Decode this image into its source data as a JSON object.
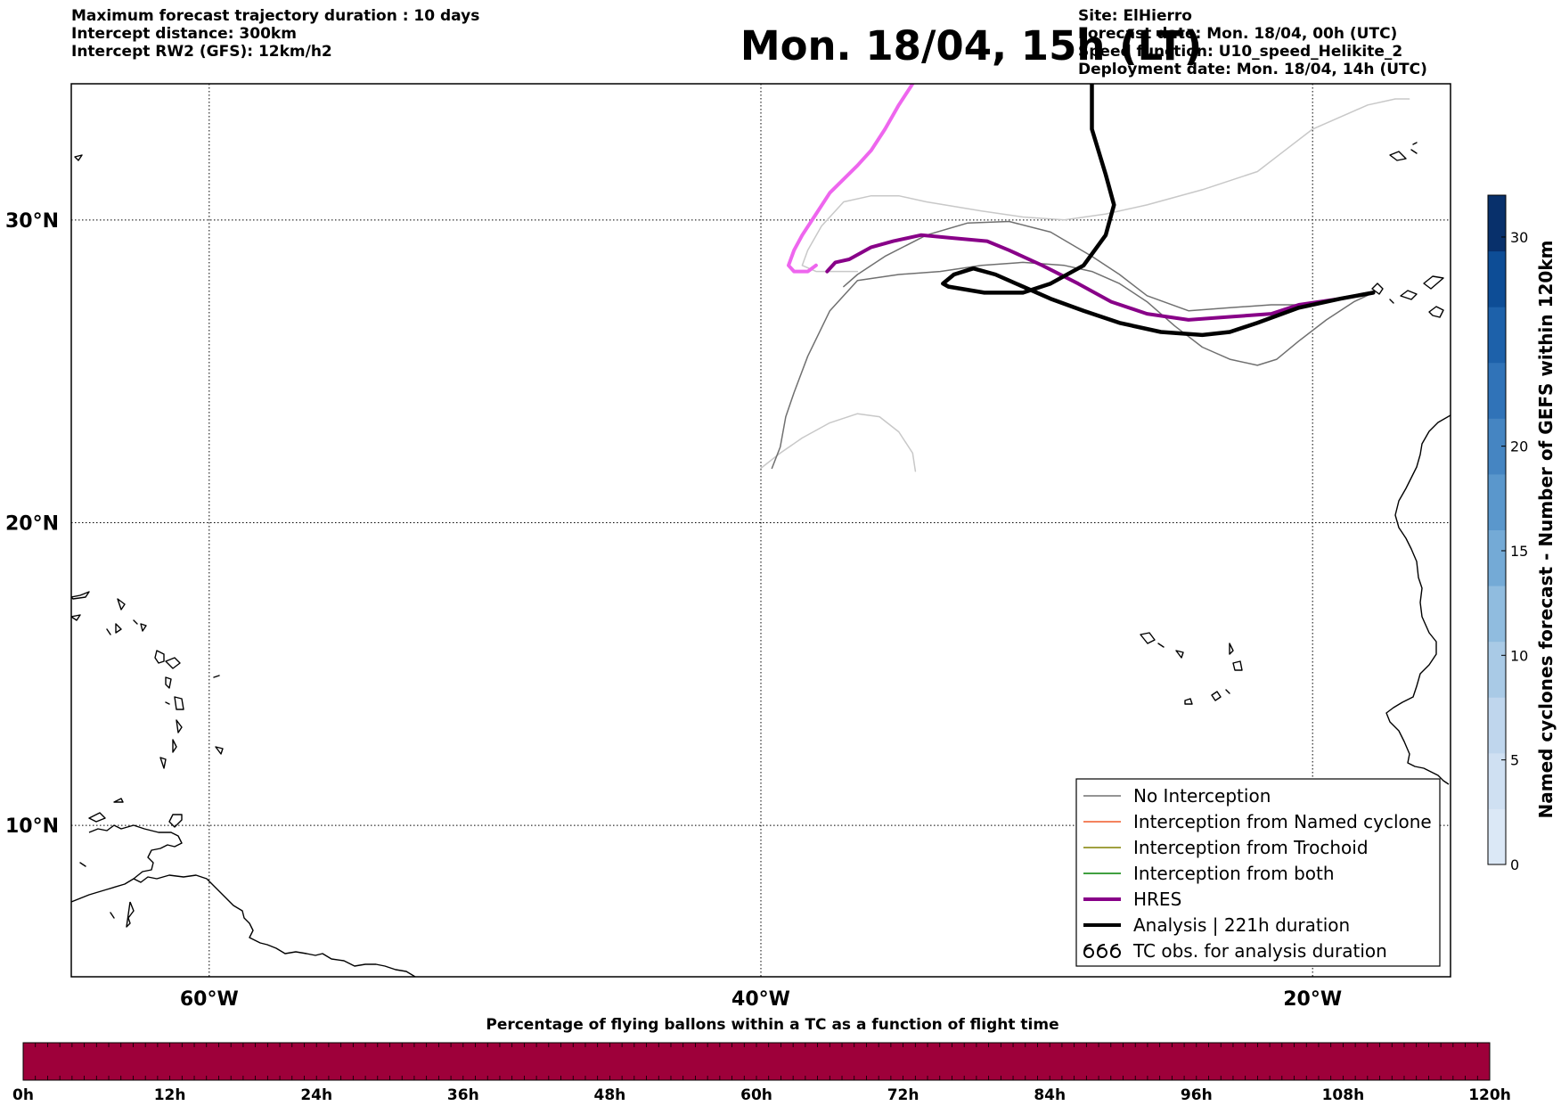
{
  "header_left": [
    "Maximum forecast trajectory duration : 10 days",
    "Intercept distance: 300km",
    "Intercept RW2 (GFS):  12km/h2"
  ],
  "title": "Mon. 18/04, 15h (LT)",
  "header_right": [
    "Site: ElHierro",
    "Forecast date: Mon. 18/04, 00h (UTC)",
    "Speed function: U10_speed_Helikite_2",
    "Deployment date: Mon. 18/04, 14h (UTC)"
  ],
  "map": {
    "extent": {
      "lon": [
        -65,
        -15
      ],
      "lat": [
        5,
        34.5
      ]
    },
    "lat_gridlines": [
      {
        "value": 30,
        "label": "30°N"
      },
      {
        "value": 20,
        "label": "20°N"
      },
      {
        "value": 10,
        "label": "10°N"
      }
    ],
    "lon_gridlines": [
      {
        "value": -60,
        "label": "60°W"
      },
      {
        "value": -40,
        "label": "40°W"
      },
      {
        "value": -20,
        "label": "20°W"
      }
    ],
    "trajectories": [
      {
        "kind": "ensemble",
        "color": "#c8c8c8",
        "width": 1.5,
        "points": [
          [
            -16.5,
            34
          ],
          [
            -17,
            34
          ],
          [
            -18,
            33.8
          ],
          [
            -20,
            33
          ],
          [
            -21,
            32.3
          ],
          [
            -22,
            31.6
          ],
          [
            -24,
            31
          ],
          [
            -26,
            30.5
          ],
          [
            -27.5,
            30.2
          ],
          [
            -29,
            30
          ],
          [
            -30.5,
            30.1
          ],
          [
            -32,
            30.3
          ],
          [
            -34,
            30.6
          ],
          [
            -35,
            30.8
          ],
          [
            -36,
            30.8
          ],
          [
            -37,
            30.6
          ],
          [
            -37.8,
            29.8
          ],
          [
            -38.3,
            29
          ],
          [
            -38.5,
            28.5
          ],
          [
            -38,
            28.3
          ],
          [
            -36.5,
            28.3
          ]
        ]
      },
      {
        "kind": "ensemble",
        "color": "#c8c8c8",
        "width": 1.5,
        "points": [
          [
            -34.4,
            21.7
          ],
          [
            -34.5,
            22.3
          ],
          [
            -35,
            23
          ],
          [
            -35.7,
            23.5
          ],
          [
            -36.5,
            23.6
          ],
          [
            -37.5,
            23.3
          ],
          [
            -38.5,
            22.8
          ],
          [
            -39.3,
            22.3
          ],
          [
            -40,
            21.8
          ]
        ]
      },
      {
        "kind": "no-interception",
        "color": "#707070",
        "width": 1.5,
        "points": [
          [
            -17.8,
            27.6
          ],
          [
            -18.5,
            27.3
          ],
          [
            -19.5,
            26.7
          ],
          [
            -20.5,
            26
          ],
          [
            -21.3,
            25.4
          ],
          [
            -22,
            25.2
          ],
          [
            -23,
            25.4
          ],
          [
            -24,
            25.8
          ],
          [
            -25,
            26.5
          ],
          [
            -26,
            27.3
          ],
          [
            -27,
            27.9
          ],
          [
            -28,
            28.3
          ],
          [
            -29,
            28.5
          ],
          [
            -30.5,
            28.6
          ],
          [
            -32,
            28.5
          ],
          [
            -33.5,
            28.3
          ],
          [
            -35,
            28.2
          ],
          [
            -36.5,
            28.0
          ],
          [
            -37.5,
            27
          ],
          [
            -38.3,
            25.5
          ],
          [
            -38.8,
            24.3
          ],
          [
            -39.1,
            23.5
          ],
          [
            -39.3,
            22.5
          ],
          [
            -39.6,
            21.8
          ]
        ]
      },
      {
        "kind": "no-interception",
        "color": "#707070",
        "width": 1.5,
        "points": [
          [
            -17.8,
            27.6
          ],
          [
            -19,
            27.4
          ],
          [
            -20,
            27.2
          ],
          [
            -21.5,
            27.2
          ],
          [
            -23,
            27.1
          ],
          [
            -24.5,
            27
          ],
          [
            -26,
            27.5
          ],
          [
            -27,
            28.2
          ],
          [
            -28,
            28.8
          ],
          [
            -29.5,
            29.6
          ],
          [
            -31,
            29.95
          ],
          [
            -32.5,
            29.9
          ],
          [
            -34,
            29.5
          ],
          [
            -35.5,
            28.8
          ],
          [
            -36.5,
            28.2
          ],
          [
            -37,
            27.8
          ]
        ]
      },
      {
        "kind": "hres-pink",
        "color": "#ee66ee",
        "width": 4,
        "points": [
          [
            -34.5,
            34.5
          ],
          [
            -35,
            33.8
          ],
          [
            -35.5,
            33
          ],
          [
            -36,
            32.3
          ],
          [
            -36.5,
            31.8
          ],
          [
            -37.5,
            30.9
          ],
          [
            -38,
            30.2
          ],
          [
            -38.5,
            29.5
          ],
          [
            -38.8,
            29
          ],
          [
            -39,
            28.5
          ],
          [
            -38.8,
            28.3
          ],
          [
            -38.3,
            28.3
          ],
          [
            -38,
            28.5
          ]
        ]
      },
      {
        "kind": "hres",
        "color": "#880088",
        "width": 4,
        "points": [
          [
            -17.8,
            27.6
          ],
          [
            -19,
            27.4
          ],
          [
            -20.5,
            27.2
          ],
          [
            -21.5,
            26.9
          ],
          [
            -23,
            26.8
          ],
          [
            -24.5,
            26.7
          ],
          [
            -26,
            26.9
          ],
          [
            -27.3,
            27.3
          ],
          [
            -28.5,
            27.9
          ],
          [
            -29.8,
            28.5
          ],
          [
            -31,
            29.0
          ],
          [
            -31.8,
            29.3
          ],
          [
            -33,
            29.4
          ],
          [
            -34.2,
            29.5
          ],
          [
            -35.2,
            29.3
          ],
          [
            -36,
            29.1
          ],
          [
            -36.8,
            28.7
          ],
          [
            -37.3,
            28.6
          ],
          [
            -37.6,
            28.3
          ]
        ]
      },
      {
        "kind": "analysis",
        "color": "#000000",
        "width": 4.5,
        "points": [
          [
            -17.8,
            27.6
          ],
          [
            -19,
            27.4
          ],
          [
            -20.5,
            27.1
          ],
          [
            -22,
            26.6
          ],
          [
            -23,
            26.3
          ],
          [
            -24,
            26.2
          ],
          [
            -25.5,
            26.3
          ],
          [
            -27,
            26.6
          ],
          [
            -28.3,
            27.0
          ],
          [
            -29.5,
            27.4
          ],
          [
            -30.5,
            27.8
          ],
          [
            -31.5,
            28.2
          ],
          [
            -32.3,
            28.4
          ],
          [
            -33,
            28.2
          ],
          [
            -33.4,
            27.9
          ],
          [
            -33.2,
            27.8
          ],
          [
            -31.9,
            27.6
          ],
          [
            -30.5,
            27.6
          ],
          [
            -29.5,
            27.9
          ],
          [
            -28.3,
            28.5
          ],
          [
            -27.5,
            29.5
          ],
          [
            -27.2,
            30.5
          ],
          [
            -27.5,
            31.5
          ],
          [
            -28.0,
            33
          ],
          [
            -28.0,
            34.5
          ]
        ]
      }
    ]
  },
  "legend": {
    "items": [
      {
        "label": "No Interception",
        "color": "#707070",
        "width": 1.5,
        "glyph": "line"
      },
      {
        "label": "Interception from Named cyclone",
        "color": "#f05a28",
        "width": 1.5,
        "glyph": "line"
      },
      {
        "label": "Interception from Trochoid",
        "color": "#808000",
        "width": 1.5,
        "glyph": "line"
      },
      {
        "label": "Interception from both",
        "color": "#008000",
        "width": 1.5,
        "glyph": "line"
      },
      {
        "label": "HRES",
        "color": "#880088",
        "width": 4,
        "glyph": "line"
      },
      {
        "label": "Analysis | 221h duration",
        "color": "#000000",
        "width": 4,
        "glyph": "line"
      },
      {
        "label": "TC obs. for analysis duration",
        "color": "#000000",
        "width": 1.5,
        "glyph": "cyclone-icon"
      }
    ]
  },
  "colorbar": {
    "label": "Named cyclones forecast - Number of GEFS within 120km",
    "range": [
      0,
      32
    ],
    "ticks": [
      0,
      5,
      10,
      15,
      20,
      30
    ],
    "colors": [
      "#dbe8f6",
      "#cfe0f2",
      "#bfd6ed",
      "#a9cae6",
      "#90bcdf",
      "#74aad6",
      "#5a97cc",
      "#4585c2",
      "#3073b8",
      "#1d61aa",
      "#0d4d96",
      "#08306b"
    ]
  },
  "time_bar": {
    "title": "Percentage of flying ballons within a TC as a function of flight time",
    "ticks": [
      "0h",
      "12h",
      "24h",
      "36h",
      "48h",
      "60h",
      "72h",
      "84h",
      "96h",
      "108h",
      "120h"
    ],
    "fill_color": "#9e003a"
  }
}
